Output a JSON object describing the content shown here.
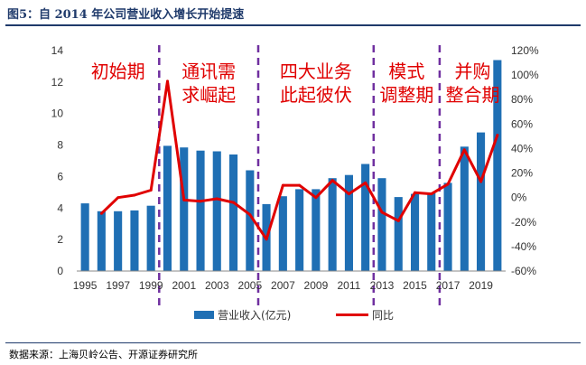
{
  "figure": {
    "title": "图5：自 2014 年公司营业收入增长开始提速",
    "source": "数据来源：上海贝岭公告、开源证券研究所"
  },
  "chart_data": {
    "type": "bar",
    "x": [
      "1995",
      "1996",
      "1997",
      "1998",
      "1999",
      "2000",
      "2001",
      "2002",
      "2003",
      "2004",
      "2005",
      "2006",
      "2007",
      "2008",
      "2009",
      "2010",
      "2011",
      "2012",
      "2013",
      "2014",
      "2015",
      "2016",
      "2017",
      "2018",
      "2019",
      "2020"
    ],
    "x_tick_labels": [
      "1995",
      "1997",
      "1999",
      "2001",
      "2003",
      "2005",
      "2007",
      "2009",
      "2011",
      "2013",
      "2015",
      "2017",
      "2019"
    ],
    "series": [
      {
        "name": "营业收入(亿元)",
        "type": "bar",
        "axis": "left",
        "color": "#1f6fb4",
        "values": [
          4.3,
          3.8,
          3.8,
          3.85,
          4.15,
          7.95,
          7.85,
          7.65,
          7.6,
          7.4,
          6.4,
          4.25,
          4.75,
          5.2,
          5.2,
          5.9,
          6.1,
          6.8,
          5.9,
          4.7,
          4.9,
          4.95,
          5.6,
          7.9,
          8.8,
          13.4
        ]
      },
      {
        "name": "同比",
        "type": "line",
        "axis": "right",
        "color": "#e00000",
        "values": [
          null,
          -13,
          0,
          2,
          6,
          95,
          -2,
          -3,
          -1,
          -4,
          -14,
          -34,
          10,
          10,
          0,
          14,
          3,
          12,
          -12,
          -19,
          4,
          3,
          11,
          39,
          13,
          51
        ]
      }
    ],
    "left_axis": {
      "min": 0,
      "max": 14,
      "step": 2,
      "ticks": [
        "0",
        "2",
        "4",
        "6",
        "8",
        "10",
        "12",
        "14"
      ]
    },
    "right_axis": {
      "min": -60,
      "max": 120,
      "step": 20,
      "ticks": [
        "-60%",
        "-40%",
        "-20%",
        "0%",
        "20%",
        "40%",
        "60%",
        "80%",
        "100%",
        "120%"
      ]
    },
    "phases": [
      {
        "lines": [
          "初始期"
        ]
      },
      {
        "lines": [
          "通讯需",
          "求崛起"
        ]
      },
      {
        "lines": [
          "四大业务",
          "此起彼伏"
        ]
      },
      {
        "lines": [
          "模式",
          "调整期"
        ]
      },
      {
        "lines": [
          "并购",
          "整合期"
        ]
      }
    ],
    "phase_boundaries_after": [
      "1999",
      "2005",
      "2012",
      "2016"
    ],
    "divider_color": "#7030a0",
    "grid": false,
    "legend_position": "bottom"
  }
}
